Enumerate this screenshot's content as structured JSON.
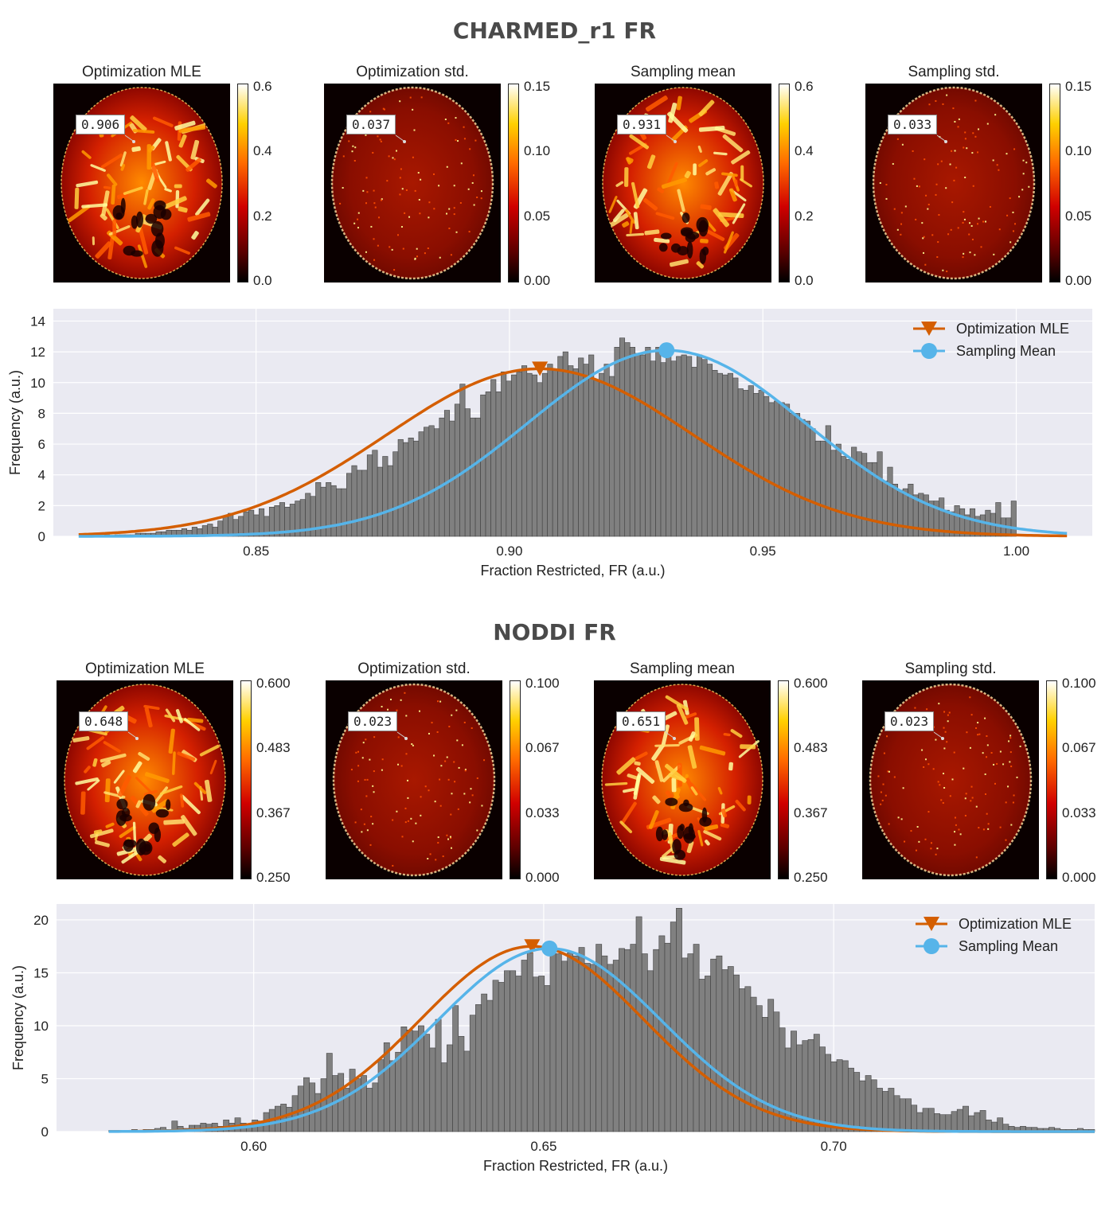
{
  "sections": [
    {
      "title": "CHARMED_r1 FR",
      "panels": [
        {
          "title": "Optimization MLE",
          "badge": "0.906",
          "ticks": [
            "0.6",
            "0.4",
            "0.2",
            "0.0"
          ],
          "kind": "map"
        },
        {
          "title": "Optimization std.",
          "badge": "0.037",
          "ticks": [
            "0.15",
            "0.10",
            "0.05",
            "0.00"
          ],
          "kind": "std"
        },
        {
          "title": "Sampling mean",
          "badge": "0.931",
          "ticks": [
            "0.6",
            "0.4",
            "0.2",
            "0.0"
          ],
          "kind": "map"
        },
        {
          "title": "Sampling std.",
          "badge": "0.033",
          "ticks": [
            "0.15",
            "0.10",
            "0.05",
            "0.00"
          ],
          "kind": "std"
        }
      ]
    },
    {
      "title": "NODDI FR",
      "panels": [
        {
          "title": "Optimization MLE",
          "badge": "0.648",
          "ticks": [
            "0.600",
            "0.483",
            "0.367",
            "0.250"
          ],
          "kind": "map"
        },
        {
          "title": "Optimization std.",
          "badge": "0.023",
          "ticks": [
            "0.100",
            "0.067",
            "0.033",
            "0.000"
          ],
          "kind": "std"
        },
        {
          "title": "Sampling mean",
          "badge": "0.651",
          "ticks": [
            "0.600",
            "0.483",
            "0.367",
            "0.250"
          ],
          "kind": "map"
        },
        {
          "title": "Sampling std.",
          "badge": "0.023",
          "ticks": [
            "0.100",
            "0.067",
            "0.033",
            "0.000"
          ],
          "kind": "std"
        }
      ]
    }
  ],
  "colors": {
    "mle": "#d45e00",
    "mean": "#56b4e9",
    "bar": "#808080",
    "plot_bg": "#eaeaf2"
  },
  "chart_data": [
    {
      "type": "bar",
      "title": "CHARMED_r1 FR",
      "xlabel": "Fraction Restricted, FR (a.u.)",
      "ylabel": "Frequency (a.u.)",
      "xlim": [
        0.81,
        1.015
      ],
      "ylim": [
        0,
        14.8
      ],
      "xticks": [
        0.85,
        0.9,
        0.95,
        1.0
      ],
      "xtick_labels": [
        "0.85",
        "0.90",
        "0.95",
        "1.00"
      ],
      "yticks": [
        0,
        2,
        4,
        6,
        8,
        10,
        12,
        14
      ],
      "ytick_labels": [
        "0",
        "2",
        "4",
        "6",
        "8",
        "10",
        "12",
        "14"
      ],
      "hist_range": [
        0.815,
        1.0
      ],
      "bin_counts": [
        0,
        0,
        0,
        0,
        0,
        0.1,
        0,
        0.1,
        0.1,
        0.1,
        0.1,
        0.2,
        0.2,
        0.2,
        0.2,
        0.3,
        0.3,
        0.4,
        0.4,
        0.4,
        0.5,
        0.4,
        0.6,
        0.5,
        0.7,
        0.8,
        0.6,
        1.0,
        1.3,
        1.5,
        1.1,
        1.3,
        1.6,
        1.7,
        1.4,
        1.8,
        1.3,
        1.9,
        2.0,
        2.2,
        1.9,
        2.1,
        2.3,
        2.4,
        2.8,
        2.6,
        3.5,
        3.2,
        3.5,
        3.3,
        3.1,
        3.1,
        4.1,
        4.6,
        4.3,
        4.3,
        5.3,
        5.6,
        4.5,
        5.2,
        4.6,
        5.5,
        6.3,
        6.1,
        6.4,
        6.2,
        6.8,
        7.1,
        7.2,
        7.0,
        7.7,
        8.2,
        7.5,
        8.6,
        9.9,
        8.3,
        7.7,
        7.7,
        9.2,
        9.4,
        10.2,
        9.4,
        10.7,
        10.1,
        10.5,
        10.7,
        11.1,
        10.6,
        10.5,
        10.0,
        10.6,
        11.2,
        10.8,
        11.7,
        12.0,
        11.1,
        10.9,
        11.6,
        11.2,
        11.8,
        10.2,
        10.6,
        11.2,
        10.4,
        12.3,
        12.9,
        12.6,
        12.3,
        11.9,
        11.8,
        12.3,
        11.4,
        12.3,
        11.3,
        11.8,
        11.4,
        11.7,
        11.8,
        11.7,
        11.0,
        11.8,
        11.5,
        11.2,
        10.8,
        10.6,
        10.5,
        10.6,
        10.3,
        9.6,
        9.5,
        9.8,
        9.3,
        9.5,
        9.1,
        8.7,
        8.8,
        8.7,
        8.6,
        8.0,
        8.0,
        7.6,
        7.5,
        7.0,
        6.2,
        6.2,
        7.2,
        5.6,
        6.0,
        5.2,
        5.0,
        5.8,
        5.5,
        5.4,
        4.8,
        4.8,
        5.5,
        3.6,
        4.5,
        3.4,
        3.0,
        3.1,
        3.4,
        2.7,
        2.8,
        2.7,
        2.3,
        2.3,
        2.5,
        1.7,
        1.6,
        2.0,
        1.8,
        1.4,
        1.8,
        1.3,
        1.4,
        1.7,
        1.5,
        2.2,
        1.2,
        1.2,
        2.3
      ],
      "series": [
        {
          "name": "Optimization MLE",
          "mu": 0.906,
          "sigma": 0.0302,
          "peak": 10.9,
          "x_range": [
            0.815,
            1.01
          ],
          "marker": "triangle-down"
        },
        {
          "name": "Sampling Mean",
          "mu": 0.931,
          "sigma": 0.0275,
          "peak": 12.1,
          "x_range": [
            0.815,
            1.01
          ],
          "marker": "circle"
        }
      ],
      "legend_position": "top-right"
    },
    {
      "type": "bar",
      "title": "NODDI FR",
      "xlabel": "Fraction Restricted, FR (a.u.)",
      "ylabel": "Frequency (a.u.)",
      "xlim": [
        0.566,
        0.745
      ],
      "ylim": [
        0,
        21.5
      ],
      "xticks": [
        0.6,
        0.65,
        0.7
      ],
      "xtick_labels": [
        "0.60",
        "0.65",
        "0.70"
      ],
      "yticks": [
        0,
        5,
        10,
        15,
        20
      ],
      "ytick_labels": [
        "0",
        "5",
        "10",
        "15",
        "20"
      ],
      "hist_range": [
        0.575,
        0.745
      ],
      "bin_counts": [
        0.1,
        0.1,
        0.1,
        0.1,
        0.2,
        0.1,
        0.2,
        0.2,
        0.3,
        0.4,
        0.2,
        1.0,
        0.5,
        0.3,
        0.6,
        0.6,
        0.8,
        0.7,
        0.8,
        0.5,
        1.1,
        0.8,
        1.3,
        0.8,
        0.6,
        1.1,
        1.0,
        1.8,
        2.1,
        2.4,
        2.6,
        2.3,
        3.4,
        4.3,
        5.1,
        4.6,
        3.6,
        5.0,
        7.4,
        5.3,
        5.5,
        4.1,
        5.9,
        5.0,
        5.3,
        4.1,
        4.6,
        6.8,
        8.4,
        6.7,
        7.5,
        9.9,
        9.6,
        9.5,
        10.0,
        9.2,
        7.9,
        10.6,
        6.5,
        8.2,
        11.9,
        9.0,
        7.6,
        11.0,
        12.0,
        13.0,
        12.4,
        14.3,
        14.1,
        15.2,
        15.2,
        14.7,
        16.2,
        16.9,
        14.6,
        14.7,
        13.8,
        17.1,
        16.8,
        16.1,
        16.9,
        16.6,
        17.4,
        15.9,
        15.8,
        17.7,
        16.6,
        15.8,
        16.2,
        17.3,
        17.2,
        17.7,
        20.3,
        16.8,
        15.2,
        17.2,
        18.5,
        17.8,
        19.8,
        21.1,
        16.4,
        16.8,
        17.7,
        14.4,
        14.7,
        16.3,
        16.6,
        15.3,
        15.6,
        14.8,
        13.5,
        13.7,
        12.7,
        11.9,
        10.8,
        12.5,
        11.3,
        9.8,
        7.9,
        9.5,
        8.2,
        8.6,
        8.7,
        9.2,
        8.0,
        7.3,
        6.6,
        6.8,
        6.7,
        6.0,
        5.6,
        4.8,
        5.3,
        4.9,
        4.1,
        3.8,
        4.1,
        3.4,
        3.1,
        3.1,
        2.5,
        1.8,
        2.2,
        2.2,
        1.7,
        1.6,
        1.6,
        1.9,
        2.1,
        2.4,
        1.5,
        1.8,
        2.0,
        1.1,
        0.9,
        1.3,
        0.7,
        0.5,
        0.4,
        0.5,
        0.4,
        0.4,
        0.3,
        0.3,
        0.4,
        0.3,
        0.2,
        0.2,
        0.2,
        0.3,
        0.2,
        0.2
      ],
      "series": [
        {
          "name": "Optimization MLE",
          "mu": 0.648,
          "sigma": 0.0192,
          "peak": 17.5,
          "x_range": [
            0.575,
            0.745
          ],
          "marker": "triangle-down"
        },
        {
          "name": "Sampling Mean",
          "mu": 0.651,
          "sigma": 0.0193,
          "peak": 17.3,
          "x_range": [
            0.575,
            0.745
          ],
          "marker": "circle"
        }
      ],
      "legend_position": "top-right"
    }
  ]
}
